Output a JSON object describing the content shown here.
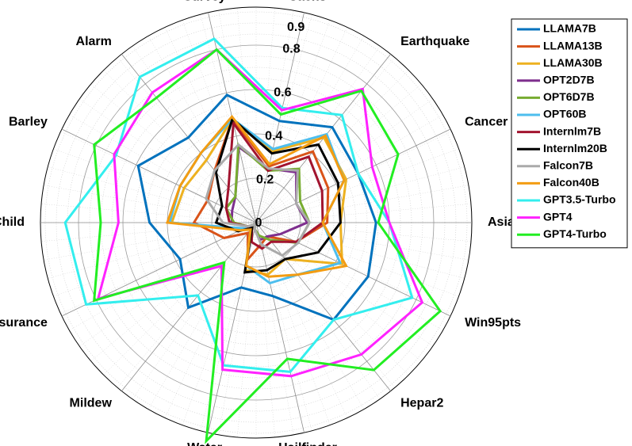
{
  "chart_data": {
    "type": "radar",
    "axes": [
      "Sachs",
      "Earthquake",
      "Cancer",
      "Asia",
      "Win95pts",
      "Hepar2",
      "Hailfinder",
      "Water",
      "Mildew",
      "Insurance",
      "Child",
      "Barley",
      "Alarm",
      "Survey"
    ],
    "radial_ticks": [
      "0",
      "0.2",
      "0.4",
      "0.6",
      "0.8",
      "0.9"
    ],
    "rlim": [
      0,
      0.9
    ],
    "grid": true,
    "legend_position": "top-right",
    "series": [
      {
        "name": "LLAMA7B",
        "color": "#0072BD",
        "values": [
          0.47,
          0.55,
          0.51,
          0.54,
          0.56,
          0.56,
          0.34,
          0.3,
          0.49,
          0.38,
          0.48,
          0.59,
          0.49,
          0.59
        ]
      },
      {
        "name": "LLAMA13B",
        "color": "#D95319",
        "values": [
          0.26,
          0.41,
          0.36,
          0.32,
          0.2,
          0.08,
          0.1,
          0.17,
          0.06,
          0.16,
          0.28,
          0.24,
          0.3,
          0.48
        ]
      },
      {
        "name": "LLAMA30B",
        "color": "#EDB120",
        "values": [
          0.33,
          0.49,
          0.45,
          0.38,
          0.43,
          0.21,
          0.24,
          0.22,
          0.04,
          0.07,
          0.38,
          0.36,
          0.36,
          0.48
        ]
      },
      {
        "name": "OPT2D7B",
        "color": "#7E2F8E",
        "values": [
          0.25,
          0.29,
          0.2,
          0.23,
          0.12,
          0.08,
          0.08,
          0.03,
          0.01,
          0.04,
          0.11,
          0.12,
          0.15,
          0.35
        ]
      },
      {
        "name": "OPT6D7B",
        "color": "#77AC30",
        "values": [
          0.24,
          0.31,
          0.22,
          0.24,
          0.21,
          0.1,
          0.06,
          0.03,
          0.01,
          0.04,
          0.1,
          0.15,
          0.15,
          0.36
        ]
      },
      {
        "name": "OPT60B",
        "color": "#4DBEEE",
        "values": [
          0.34,
          0.51,
          0.44,
          0.3,
          0.42,
          0.3,
          0.28,
          0.2,
          0.04,
          0.06,
          0.39,
          0.38,
          0.4,
          0.48
        ]
      },
      {
        "name": "Internlm7B",
        "color": "#A2142F",
        "values": [
          0.24,
          0.38,
          0.33,
          0.3,
          0.2,
          0.11,
          0.12,
          0.09,
          0.03,
          0.04,
          0.12,
          0.15,
          0.2,
          0.46
        ]
      },
      {
        "name": "Internlm20B",
        "color": "#000000",
        "values": [
          0.32,
          0.45,
          0.41,
          0.38,
          0.31,
          0.21,
          0.22,
          0.23,
          0.03,
          0.09,
          0.18,
          0.17,
          0.29,
          0.48
        ]
      },
      {
        "name": "Falcon7B",
        "color": "#AAAAAA",
        "values": [
          0.25,
          0.3,
          0.2,
          0.24,
          0.21,
          0.19,
          0.1,
          0.03,
          0.01,
          0.04,
          0.15,
          0.25,
          0.3,
          0.36
        ]
      },
      {
        "name": "Falcon40B",
        "color": "#F39C12",
        "values": [
          0.27,
          0.5,
          0.44,
          0.3,
          0.45,
          0.3,
          0.25,
          0.2,
          0.04,
          0.08,
          0.4,
          0.38,
          0.4,
          0.49
        ]
      },
      {
        "name": "GPT3.5-Turbo",
        "color": "#33EEEE",
        "values": [
          0.53,
          0.62,
          0.51,
          0.6,
          0.78,
          0.56,
          0.69,
          0.66,
          0.42,
          0.85,
          0.86,
          0.7,
          0.84,
          0.85
        ]
      },
      {
        "name": "GPT4",
        "color": "#FF22FF",
        "values": [
          0.52,
          0.77,
          0.58,
          0.6,
          0.83,
          0.76,
          0.71,
          0.68,
          0.25,
          0.79,
          0.62,
          0.71,
          0.75,
          0.8
        ]
      },
      {
        "name": "GPT4-Turbo",
        "color": "#22EE22",
        "values": [
          0.5,
          0.76,
          0.71,
          0.55,
          0.92,
          0.85,
          0.63,
          1.01,
          0.23,
          0.81,
          0.7,
          0.81,
          0.72,
          0.8
        ]
      }
    ]
  }
}
